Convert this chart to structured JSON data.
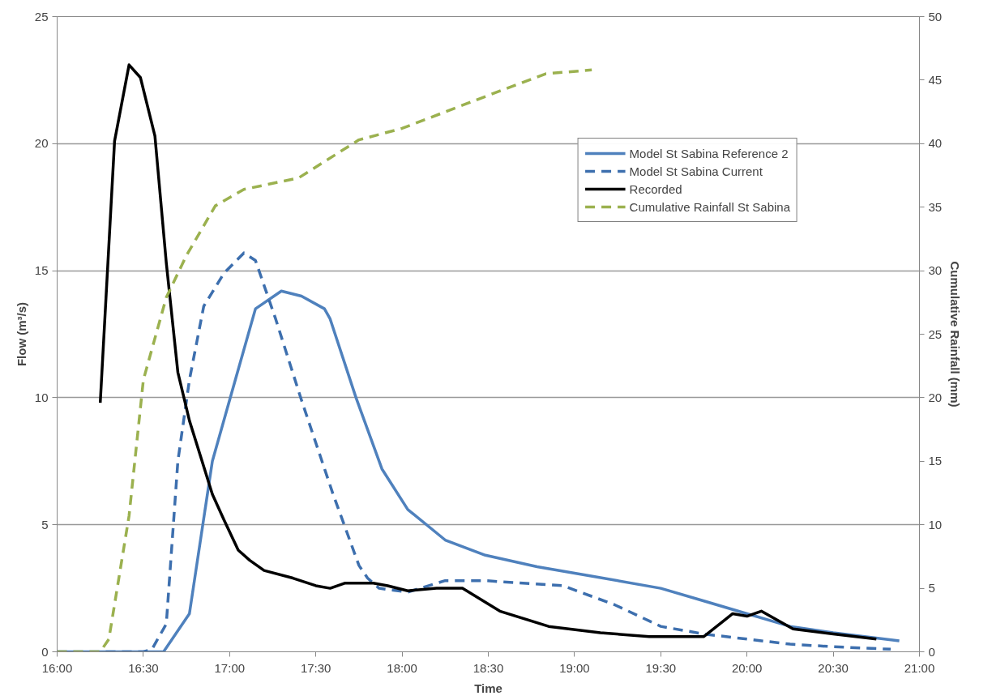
{
  "chart_data": {
    "type": "line",
    "xlabel": "Time",
    "ylabel": "Flow (m³/s)",
    "y2label": "Cumulative Rainfall (mm)",
    "xlim": [
      16,
      21
    ],
    "xticks": [
      {
        "value": 16,
        "label": "16:00"
      },
      {
        "value": 16.5,
        "label": "16:30"
      },
      {
        "value": 17,
        "label": "17:00"
      },
      {
        "value": 17.5,
        "label": "17:30"
      },
      {
        "value": 18,
        "label": "18:00"
      },
      {
        "value": 18.5,
        "label": "18:30"
      },
      {
        "value": 19,
        "label": "19:00"
      },
      {
        "value": 19.5,
        "label": "19:30"
      },
      {
        "value": 20,
        "label": "20:00"
      },
      {
        "value": 20.5,
        "label": "20:30"
      },
      {
        "value": 21,
        "label": "21:00"
      }
    ],
    "ylim": [
      0,
      25
    ],
    "yticks": [
      0,
      5,
      10,
      15,
      20,
      25
    ],
    "y2lim": [
      0,
      50
    ],
    "y2ticks": [
      0,
      5,
      10,
      15,
      20,
      25,
      30,
      35,
      40,
      45,
      50
    ],
    "grid": "y",
    "legend": "top right",
    "marker": "none",
    "series": [
      {
        "name": "Model St Sabina Reference 2",
        "color": "#4f81bd",
        "line_style": "solid",
        "x": [
          16.0,
          16.617,
          16.767,
          16.9,
          17.033,
          17.15,
          17.3,
          17.417,
          17.55,
          17.583,
          17.733,
          17.883,
          18.033,
          18.25,
          18.483,
          18.783,
          19.083,
          19.5,
          19.75,
          20.0,
          20.25,
          20.5,
          20.883
        ],
        "values": [
          0,
          0,
          1.5,
          7.5,
          10.7,
          13.5,
          14.2,
          14.0,
          13.5,
          13.1,
          10.0,
          7.2,
          5.6,
          4.4,
          3.8,
          3.35,
          3.0,
          2.5,
          2.0,
          1.5,
          1.0,
          0.75,
          0.43
        ]
      },
      {
        "name": "Model St Sabina Current",
        "color": "#3d6fae",
        "line_style": "dashed",
        "x": [
          16.0,
          16.5,
          16.55,
          16.633,
          16.7,
          16.767,
          16.85,
          16.967,
          17.083,
          17.15,
          17.267,
          17.417,
          17.6,
          17.75,
          17.8,
          17.867,
          18.033,
          18.25,
          18.483,
          18.933,
          19.233,
          19.5,
          19.75,
          20.0,
          20.25,
          20.5,
          20.833
        ],
        "values": [
          0,
          0,
          0.1,
          1.1,
          7.5,
          10.7,
          13.6,
          14.9,
          15.7,
          15.4,
          13.1,
          9.9,
          6.2,
          3.4,
          2.9,
          2.5,
          2.35,
          2.8,
          2.8,
          2.6,
          1.85,
          1.0,
          0.7,
          0.5,
          0.3,
          0.2,
          0.1
        ]
      },
      {
        "name": "Recorded",
        "color": "#000000",
        "line_style": "solid",
        "x": [
          16.25,
          16.333,
          16.417,
          16.483,
          16.567,
          16.633,
          16.7,
          16.767,
          16.9,
          16.967,
          17.05,
          17.117,
          17.2,
          17.367,
          17.5,
          17.583,
          17.667,
          17.833,
          17.917,
          18.033,
          18.2,
          18.35,
          18.567,
          18.85,
          19.15,
          19.433,
          19.75,
          19.917,
          20.0,
          20.083,
          20.267,
          20.5,
          20.75
        ],
        "values": [
          9.8,
          20.1,
          23.1,
          22.6,
          20.3,
          15.3,
          11.0,
          9.1,
          6.2,
          5.2,
          4.0,
          3.6,
          3.2,
          2.9,
          2.6,
          2.5,
          2.7,
          2.7,
          2.6,
          2.4,
          2.5,
          2.5,
          1.6,
          1.0,
          0.75,
          0.6,
          0.6,
          1.5,
          1.4,
          1.6,
          0.9,
          0.7,
          0.5
        ]
      },
      {
        "name": "Cumulative Rainfall St Sabina",
        "color": "#9bb14f",
        "line_style": "dashed",
        "axis": "y2",
        "x": [
          16.0,
          16.25,
          16.3,
          16.417,
          16.5,
          16.633,
          16.75,
          16.917,
          17.083,
          17.4,
          17.75,
          18.0,
          18.5,
          18.833,
          19.1
        ],
        "values": [
          0,
          0,
          1.0,
          10.7,
          21.4,
          27.9,
          31.2,
          35.1,
          36.4,
          37.3,
          40.3,
          41.2,
          43.8,
          45.5,
          45.8
        ]
      }
    ]
  }
}
